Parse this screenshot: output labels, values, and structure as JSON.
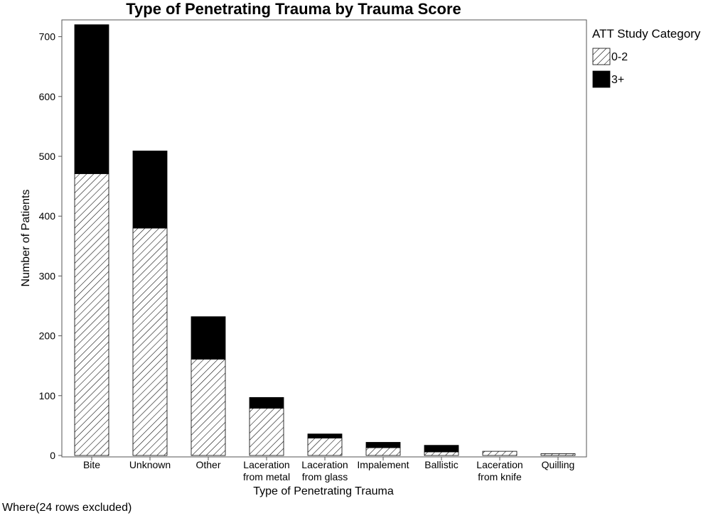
{
  "chart_data": {
    "type": "bar",
    "stacked": true,
    "title": "Type of Penetrating Trauma by Trauma Score",
    "xlabel": "Type of Penetrating Trauma",
    "ylabel": "Number of Patients",
    "ylim": [
      0,
      730
    ],
    "yticks": [
      0,
      100,
      200,
      300,
      400,
      500,
      600,
      700
    ],
    "grid": false,
    "categories": [
      [
        "Bite"
      ],
      [
        "Unknown"
      ],
      [
        "Other"
      ],
      [
        "Laceration",
        "from metal"
      ],
      [
        "Laceration",
        "from glass"
      ],
      [
        "Impalement"
      ],
      [
        "Ballistic"
      ],
      [
        "Laceration",
        "from knife"
      ],
      [
        "Quilling"
      ]
    ],
    "legend": {
      "title": "ATT Study Category",
      "placement": "right"
    },
    "series": [
      {
        "name": "0-2",
        "pattern": "hatched",
        "color": "#000000",
        "values": [
          471,
          380,
          161,
          79,
          29,
          13,
          6,
          7,
          3
        ]
      },
      {
        "name": "3+",
        "pattern": "solid",
        "color": "#000000",
        "values": [
          249,
          129,
          71,
          18,
          7,
          9,
          11,
          0,
          0
        ]
      }
    ]
  },
  "footnote": "Where(24 rows excluded)"
}
